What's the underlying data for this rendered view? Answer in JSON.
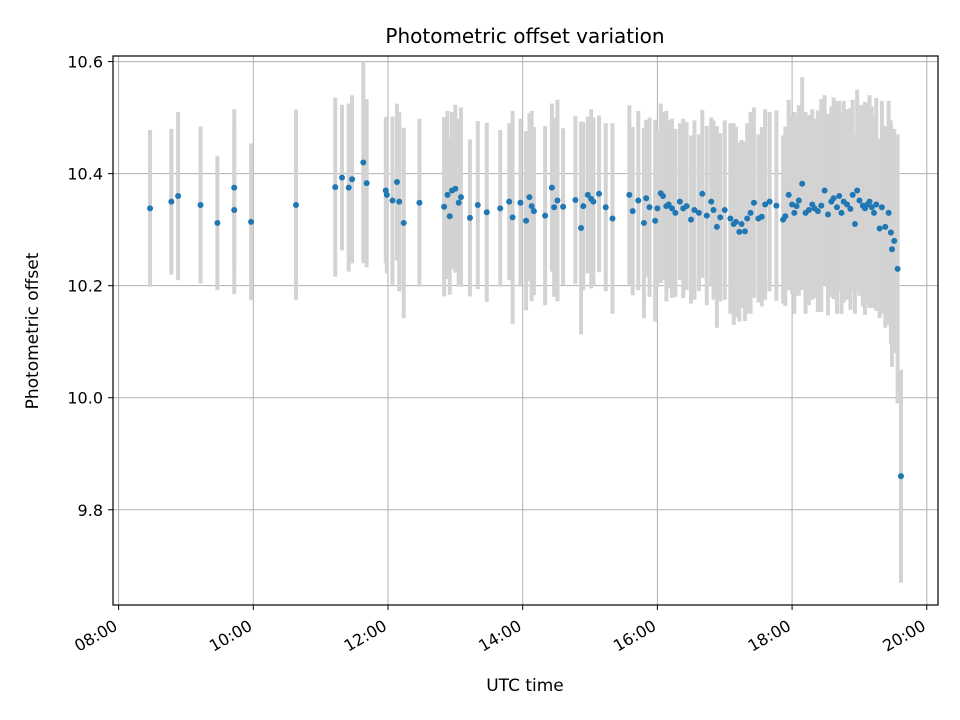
{
  "chart_data": {
    "type": "scatter",
    "title": "Photometric offset variation",
    "xlabel": "UTC time",
    "ylabel": "Photometric offset",
    "x_ticks": [
      "08:00",
      "10:00",
      "12:00",
      "14:00",
      "16:00",
      "18:00",
      "20:00"
    ],
    "y_ticks": [
      "9.8",
      "10.0",
      "10.2",
      "10.4",
      "10.6"
    ],
    "xlim": [
      "07:55",
      "20:10"
    ],
    "ylim": [
      9.63,
      10.61
    ],
    "grid": true,
    "colors": {
      "point": "#1f77b4",
      "errorbar": "#d3d3d3",
      "grid": "#b0b0b0"
    },
    "series": [
      {
        "x": [
          "08:28",
          "08:47",
          "08:53",
          "09:13",
          "09:28",
          "09:43",
          "09:43",
          "09:58",
          "10:38",
          "11:13",
          "11:19",
          "11:25",
          "11:28",
          "11:38",
          "11:41",
          "11:58",
          "11:59",
          "12:04",
          "12:08",
          "12:10",
          "12:14",
          "12:28",
          "12:50",
          "12:53",
          "12:55",
          "12:57",
          "13:00",
          "13:03",
          "13:05",
          "13:13",
          "13:20",
          "13:28",
          "13:40",
          "13:48",
          "13:51",
          "13:58",
          "14:03",
          "14:06",
          "14:08",
          "14:10",
          "14:20",
          "14:26",
          "14:28",
          "14:31",
          "14:36",
          "14:47",
          "14:52",
          "14:54",
          "14:58",
          "15:01",
          "15:03",
          "15:08",
          "15:14",
          "15:20",
          "15:35",
          "15:38",
          "15:43",
          "15:48",
          "15:50",
          "15:53",
          "15:58",
          "16:00",
          "16:03",
          "16:05",
          "16:08",
          "16:10",
          "16:13",
          "16:16",
          "16:20",
          "16:23",
          "16:26",
          "16:30",
          "16:33",
          "16:37",
          "16:40",
          "16:44",
          "16:48",
          "16:50",
          "16:53",
          "16:56",
          "17:00",
          "17:05",
          "17:08",
          "17:10",
          "17:13",
          "17:15",
          "17:18",
          "17:20",
          "17:23",
          "17:26",
          "17:30",
          "17:33",
          "17:36",
          "17:40",
          "17:46",
          "17:52",
          "17:54",
          "17:57",
          "18:00",
          "18:02",
          "18:04",
          "18:06",
          "18:09",
          "18:12",
          "18:15",
          "18:18",
          "18:20",
          "18:23",
          "18:26",
          "18:29",
          "18:32",
          "18:35",
          "18:37",
          "18:40",
          "18:42",
          "18:44",
          "18:46",
          "18:49",
          "18:52",
          "18:54",
          "18:56",
          "18:58",
          "19:00",
          "19:03",
          "19:05",
          "19:07",
          "19:09",
          "19:11",
          "19:13",
          "19:15",
          "19:18",
          "19:20",
          "19:23",
          "19:26",
          "19:28",
          "19:29",
          "19:31",
          "19:34",
          "19:37"
        ],
        "y": [
          10.338,
          10.35,
          10.36,
          10.344,
          10.312,
          10.375,
          10.335,
          10.314,
          10.344,
          10.376,
          10.393,
          10.375,
          10.39,
          10.42,
          10.383,
          10.37,
          10.362,
          10.352,
          10.385,
          10.35,
          10.312,
          10.348,
          10.341,
          10.362,
          10.324,
          10.37,
          10.373,
          10.348,
          10.358,
          10.321,
          10.344,
          10.331,
          10.338,
          10.35,
          10.322,
          10.348,
          10.316,
          10.358,
          10.342,
          10.333,
          10.325,
          10.375,
          10.34,
          10.352,
          10.341,
          10.353,
          10.303,
          10.342,
          10.362,
          10.355,
          10.35,
          10.364,
          10.34,
          10.32,
          10.362,
          10.333,
          10.352,
          10.312,
          10.356,
          10.34,
          10.316,
          10.338,
          10.365,
          10.36,
          10.342,
          10.345,
          10.338,
          10.33,
          10.35,
          10.338,
          10.342,
          10.318,
          10.335,
          10.33,
          10.364,
          10.325,
          10.35,
          10.335,
          10.305,
          10.322,
          10.335,
          10.32,
          10.31,
          10.314,
          10.296,
          10.31,
          10.297,
          10.32,
          10.33,
          10.348,
          10.32,
          10.323,
          10.345,
          10.35,
          10.343,
          10.318,
          10.324,
          10.362,
          10.345,
          10.33,
          10.342,
          10.352,
          10.382,
          10.33,
          10.335,
          10.345,
          10.338,
          10.333,
          10.343,
          10.37,
          10.327,
          10.35,
          10.356,
          10.34,
          10.36,
          10.33,
          10.35,
          10.345,
          10.337,
          10.362,
          10.31,
          10.37,
          10.352,
          10.343,
          10.338,
          10.345,
          10.35,
          10.34,
          10.33,
          10.345,
          10.302,
          10.34,
          10.305,
          10.33,
          10.295,
          10.265,
          10.28,
          10.23,
          9.86
        ],
        "error": [
          0.14,
          0.13,
          0.15,
          0.14,
          0.12,
          0.14,
          0.15,
          0.14,
          0.17,
          0.16,
          0.13,
          0.15,
          0.15,
          0.18,
          0.15,
          0.13,
          0.14,
          0.15,
          0.14,
          0.16,
          0.17,
          0.15,
          0.16,
          0.15,
          0.14,
          0.14,
          0.15,
          0.15,
          0.16,
          0.14,
          0.15,
          0.16,
          0.14,
          0.14,
          0.19,
          0.15,
          0.16,
          0.15,
          0.17,
          0.15,
          0.16,
          0.15,
          0.16,
          0.18,
          0.14,
          0.15,
          0.19,
          0.15,
          0.14,
          0.16,
          0.15,
          0.14,
          0.15,
          0.17,
          0.16,
          0.15,
          0.16,
          0.17,
          0.14,
          0.16,
          0.18,
          0.14,
          0.16,
          0.15,
          0.17,
          0.15,
          0.16,
          0.15,
          0.14,
          0.16,
          0.15,
          0.15,
          0.16,
          0.14,
          0.15,
          0.16,
          0.15,
          0.16,
          0.18,
          0.15,
          0.16,
          0.17,
          0.18,
          0.17,
          0.16,
          0.15,
          0.16,
          0.17,
          0.18,
          0.17,
          0.15,
          0.16,
          0.17,
          0.16,
          0.17,
          0.15,
          0.16,
          0.17,
          0.16,
          0.18,
          0.16,
          0.17,
          0.19,
          0.18,
          0.17,
          0.17,
          0.16,
          0.18,
          0.19,
          0.17,
          0.18,
          0.17,
          0.18,
          0.19,
          0.17,
          0.18,
          0.18,
          0.17,
          0.18,
          0.17,
          0.16,
          0.18,
          0.17,
          0.18,
          0.19,
          0.18,
          0.19,
          0.18,
          0.17,
          0.19,
          0.16,
          0.19,
          0.18,
          0.2,
          0.2,
          0.21,
          0.2,
          0.24,
          0.19
        ]
      }
    ]
  }
}
